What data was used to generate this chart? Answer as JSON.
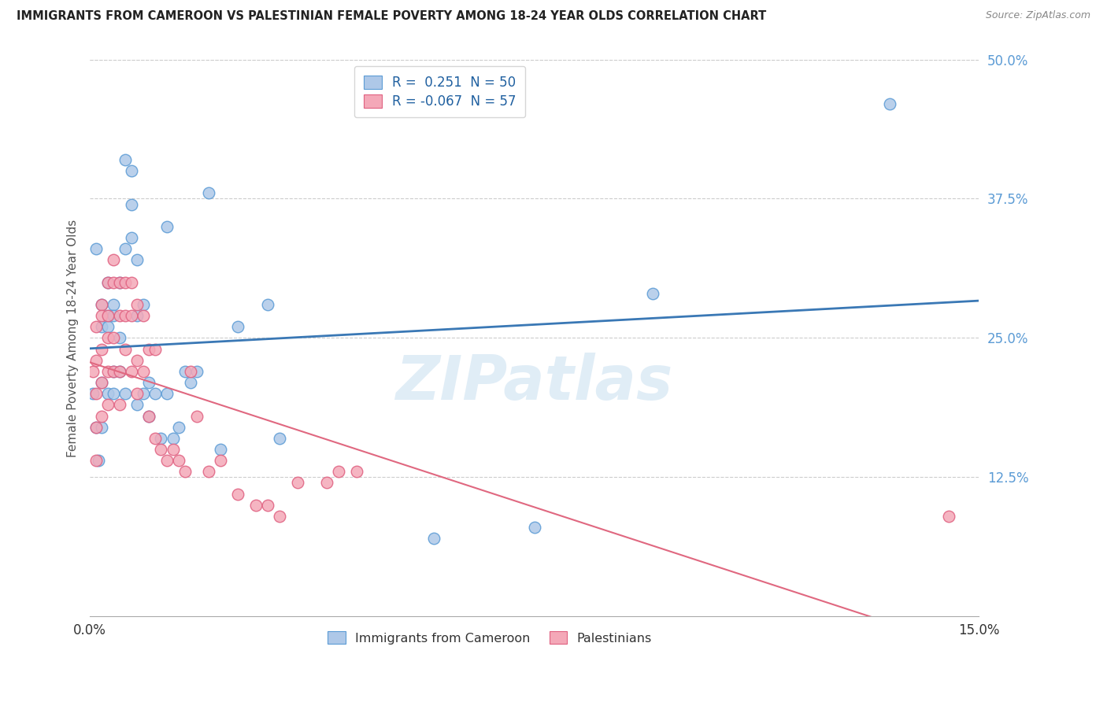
{
  "title": "IMMIGRANTS FROM CAMEROON VS PALESTINIAN FEMALE POVERTY AMONG 18-24 YEAR OLDS CORRELATION CHART",
  "source": "Source: ZipAtlas.com",
  "ylabel": "Female Poverty Among 18-24 Year Olds",
  "xlim": [
    0.0,
    0.15
  ],
  "ylim": [
    0.0,
    0.5
  ],
  "xticks": [
    0.0,
    0.05,
    0.1,
    0.15
  ],
  "xticklabels": [
    "0.0%",
    "",
    "",
    "15.0%"
  ],
  "yticks_right": [
    0.0,
    0.125,
    0.25,
    0.375,
    0.5
  ],
  "yticklabels_right": [
    "",
    "12.5%",
    "25.0%",
    "37.5%",
    "50.0%"
  ],
  "blue_R": 0.251,
  "blue_N": 50,
  "pink_R": -0.067,
  "pink_N": 57,
  "legend_label_blue": "Immigrants from Cameroon",
  "legend_label_pink": "Palestinians",
  "blue_color": "#aec8e8",
  "pink_color": "#f4a8b8",
  "blue_edge_color": "#5b9bd5",
  "pink_edge_color": "#e06080",
  "blue_line_color": "#3a78b5",
  "pink_line_color": "#e06880",
  "watermark": "ZIPatlas",
  "blue_x": [
    0.0005,
    0.001,
    0.001,
    0.0015,
    0.002,
    0.002,
    0.002,
    0.002,
    0.003,
    0.003,
    0.003,
    0.003,
    0.004,
    0.004,
    0.004,
    0.004,
    0.005,
    0.005,
    0.005,
    0.006,
    0.006,
    0.006,
    0.007,
    0.007,
    0.007,
    0.008,
    0.008,
    0.008,
    0.009,
    0.009,
    0.01,
    0.01,
    0.011,
    0.012,
    0.013,
    0.013,
    0.014,
    0.015,
    0.016,
    0.017,
    0.018,
    0.02,
    0.022,
    0.025,
    0.03,
    0.032,
    0.058,
    0.075,
    0.095,
    0.135
  ],
  "blue_y": [
    0.2,
    0.33,
    0.17,
    0.14,
    0.28,
    0.26,
    0.21,
    0.17,
    0.3,
    0.27,
    0.26,
    0.2,
    0.28,
    0.27,
    0.22,
    0.2,
    0.3,
    0.25,
    0.22,
    0.41,
    0.33,
    0.2,
    0.4,
    0.37,
    0.34,
    0.32,
    0.27,
    0.19,
    0.28,
    0.2,
    0.21,
    0.18,
    0.2,
    0.16,
    0.35,
    0.2,
    0.16,
    0.17,
    0.22,
    0.21,
    0.22,
    0.38,
    0.15,
    0.26,
    0.28,
    0.16,
    0.07,
    0.08,
    0.29,
    0.46
  ],
  "pink_x": [
    0.0005,
    0.001,
    0.001,
    0.001,
    0.001,
    0.001,
    0.002,
    0.002,
    0.002,
    0.002,
    0.002,
    0.003,
    0.003,
    0.003,
    0.003,
    0.003,
    0.004,
    0.004,
    0.004,
    0.004,
    0.005,
    0.005,
    0.005,
    0.005,
    0.006,
    0.006,
    0.006,
    0.007,
    0.007,
    0.007,
    0.008,
    0.008,
    0.008,
    0.009,
    0.009,
    0.01,
    0.01,
    0.011,
    0.011,
    0.012,
    0.013,
    0.014,
    0.015,
    0.016,
    0.017,
    0.018,
    0.02,
    0.022,
    0.025,
    0.028,
    0.03,
    0.032,
    0.035,
    0.04,
    0.042,
    0.045,
    0.145
  ],
  "pink_y": [
    0.22,
    0.26,
    0.23,
    0.2,
    0.17,
    0.14,
    0.28,
    0.27,
    0.24,
    0.21,
    0.18,
    0.3,
    0.27,
    0.25,
    0.22,
    0.19,
    0.32,
    0.3,
    0.25,
    0.22,
    0.3,
    0.27,
    0.22,
    0.19,
    0.3,
    0.27,
    0.24,
    0.3,
    0.27,
    0.22,
    0.28,
    0.23,
    0.2,
    0.27,
    0.22,
    0.24,
    0.18,
    0.24,
    0.16,
    0.15,
    0.14,
    0.15,
    0.14,
    0.13,
    0.22,
    0.18,
    0.13,
    0.14,
    0.11,
    0.1,
    0.1,
    0.09,
    0.12,
    0.12,
    0.13,
    0.13,
    0.09
  ]
}
